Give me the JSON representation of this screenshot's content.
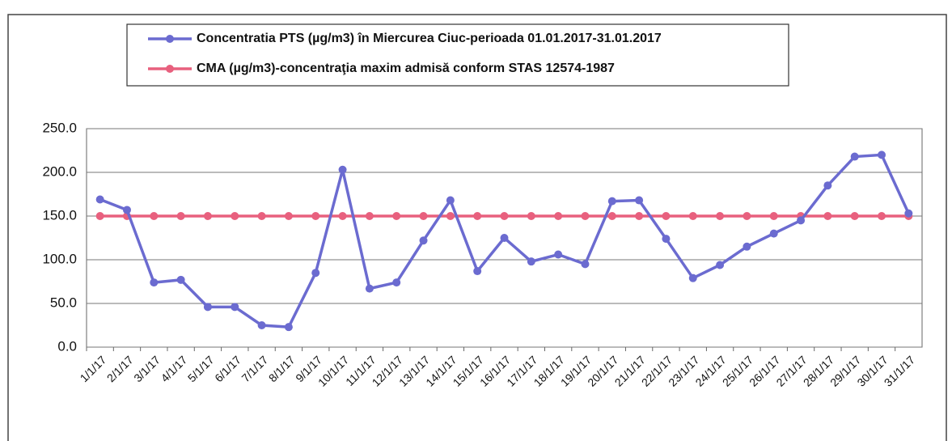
{
  "chart_data": {
    "type": "line",
    "categories": [
      "1/1/17",
      "2/1/17",
      "3/1/17",
      "4/1/17",
      "5/1/17",
      "6/1/17",
      "7/1/17",
      "8/1/17",
      "9/1/17",
      "10/1/17",
      "11/1/17",
      "12/1/17",
      "13/1/17",
      "14/1/17",
      "15/1/17",
      "16/1/17",
      "17/1/17",
      "18/1/17",
      "19/1/17",
      "20/1/17",
      "21/1/17",
      "22/1/17",
      "23/1/17",
      "24/1/17",
      "25/1/17",
      "26/1/17",
      "27/1/17",
      "28/1/17",
      "29/1/17",
      "30/1/17",
      "31/1/17"
    ],
    "series": [
      {
        "name": "Concentratia PTS (µg/m3) în Miercurea Ciuc-perioada 01.01.2017-31.01.2017",
        "color": "#6b6bd0",
        "values": [
          169,
          157,
          74,
          77,
          46,
          46,
          25,
          23,
          85,
          203,
          67,
          74,
          122,
          168,
          87,
          125,
          98,
          106,
          95,
          167,
          168,
          124,
          79,
          94,
          115,
          130,
          145,
          185,
          218,
          220,
          153
        ]
      },
      {
        "name": "CMA (µg/m3)-concentraţia maxim admisă conform STAS 12574-1987",
        "color": "#e8607e",
        "values": [
          150,
          150,
          150,
          150,
          150,
          150,
          150,
          150,
          150,
          150,
          150,
          150,
          150,
          150,
          150,
          150,
          150,
          150,
          150,
          150,
          150,
          150,
          150,
          150,
          150,
          150,
          150,
          150,
          150,
          150,
          150
        ]
      }
    ],
    "ylim": [
      0,
      250
    ],
    "yticks": [
      {
        "value": 0,
        "label": "0.0"
      },
      {
        "value": 50,
        "label": "50.0"
      },
      {
        "value": 100,
        "label": "100.0"
      },
      {
        "value": 150,
        "label": "150.0"
      },
      {
        "value": 200,
        "label": "200.0"
      },
      {
        "value": 250,
        "label": "250.0"
      }
    ],
    "grid": true
  }
}
